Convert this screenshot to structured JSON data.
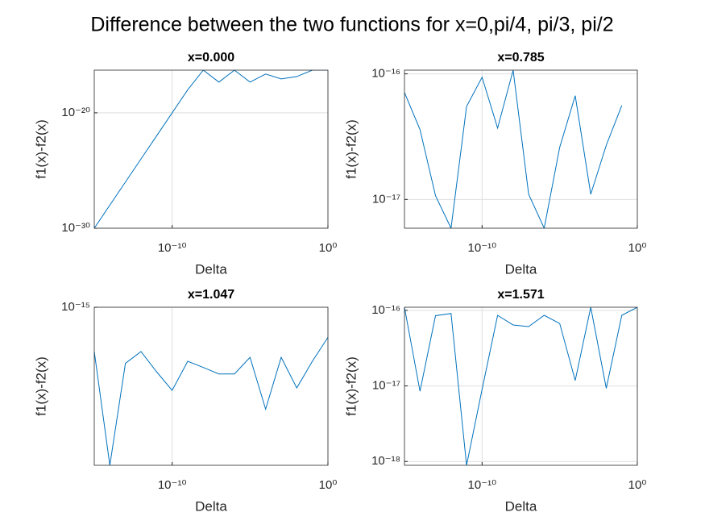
{
  "figure_title": "Difference between the two functions for x=0,pi/4, pi/3, pi/2",
  "chart_data": [
    {
      "type": "line",
      "title": "x=0.000",
      "xlabel": "Delta",
      "ylabel": "f1(x)-f2(x)",
      "xscale": "log",
      "yscale": "log",
      "grid": true,
      "x": [
        1e-15,
        1e-14,
        1e-13,
        1e-12,
        1e-11,
        1e-10,
        1e-09,
        1e-08,
        1e-07,
        1e-06,
        1e-05,
        0.0001,
        0.001,
        0.01,
        0.1,
        1
      ],
      "series": [
        {
          "color": "#0072bd",
          "values": [
            1e-30,
            1e-28,
            1e-26,
            1e-24,
            1e-22,
            1e-20,
            1e-18,
            5e-17,
            4.6e-18,
            5e-17,
            4.6e-18,
            2.3e-17,
            8.7e-18,
            1.4e-17,
            5e-17,
            5e-17
          ]
        }
      ],
      "xlim": [
        1e-15,
        1
      ],
      "xticks": [
        {
          "value": 1e-10,
          "label": "10⁻¹⁰"
        },
        {
          "value": 1,
          "label": "10⁰"
        }
      ],
      "ylim": [
        1e-30,
        5e-17
      ],
      "yticks": [
        {
          "value": 1e-30,
          "label": "10⁻³⁰"
        },
        {
          "value": 1e-20,
          "label": "10⁻²⁰"
        }
      ]
    },
    {
      "type": "line",
      "title": "x=0.785",
      "xlabel": "Delta",
      "ylabel": "f1(x)-f2(x)",
      "xscale": "log",
      "yscale": "log",
      "grid": true,
      "x": [
        1e-15,
        1e-14,
        1e-13,
        1e-12,
        1e-11,
        1e-10,
        1e-09,
        1e-08,
        1e-07,
        1e-06,
        1e-05,
        0.0001,
        0.001,
        0.01,
        0.1,
        1
      ],
      "series": [
        {
          "color": "#0072bd",
          "values": [
            7.1e-17,
            3.6e-17,
            1.07e-17,
            5.9e-18,
            5.5e-17,
            9.4e-17,
            3.7e-17,
            1.07e-16,
            1.1e-17,
            5.9e-18,
            2.6e-17,
            6.7e-17,
            1.1e-17,
            2.7e-17,
            5.6e-17,
            null
          ]
        }
      ],
      "xlim": [
        1e-15,
        1
      ],
      "xticks": [
        {
          "value": 1e-10,
          "label": "10⁻¹⁰"
        },
        {
          "value": 1,
          "label": "10⁰"
        }
      ],
      "ylim": [
        5.9e-18,
        1.07e-16
      ],
      "yticks": [
        {
          "value": 1e-17,
          "label": "10⁻¹⁷"
        },
        {
          "value": 1e-16,
          "label": "10⁻¹⁶"
        }
      ]
    },
    {
      "type": "line",
      "title": "x=1.047",
      "xlabel": "Delta",
      "ylabel": "f1(x)-f2(x)",
      "xscale": "log",
      "yscale": "log",
      "grid": true,
      "x": [
        1e-15,
        1e-14,
        1e-13,
        1e-12,
        1e-11,
        1e-10,
        1e-09,
        1e-08,
        1e-07,
        1e-06,
        1e-05,
        0.0001,
        0.001,
        0.01,
        0.1,
        1
      ],
      "series": [
        {
          "color": "#0072bd",
          "values": [
            7.2e-16,
            3.1e-16,
            6.6e-16,
            7.2e-16,
            6.2e-16,
            5.4e-16,
            6.7e-16,
            6.4e-16,
            6.1e-16,
            6.1e-16,
            6.9e-16,
            4.7e-16,
            6.9e-16,
            5.5e-16,
            6.7e-16,
            8e-16
          ]
        }
      ],
      "xlim": [
        1e-15,
        1
      ],
      "xticks": [
        {
          "value": 1e-10,
          "label": "10⁻¹⁰"
        },
        {
          "value": 1,
          "label": "10⁰"
        }
      ],
      "ylim": [
        3.1e-16,
        1e-15
      ],
      "yticks": [
        {
          "value": 1e-15,
          "label": "10⁻¹⁵"
        }
      ]
    },
    {
      "type": "line",
      "title": "x=1.571",
      "xlabel": "Delta",
      "ylabel": "f1(x)-f2(x)",
      "xscale": "log",
      "yscale": "log",
      "grid": true,
      "x": [
        1e-15,
        1e-14,
        1e-13,
        1e-12,
        1e-11,
        1e-10,
        1e-09,
        1e-08,
        1e-07,
        1e-06,
        1e-05,
        0.0001,
        0.001,
        0.01,
        0.1,
        1
      ],
      "series": [
        {
          "color": "#0072bd",
          "values": [
            1.1e-16,
            8.5e-18,
            8.5e-17,
            9.1e-17,
            8.9e-19,
            9e-18,
            8.6e-17,
            6.4e-17,
            6.1e-17,
            8.6e-17,
            6.7e-17,
            1.18e-17,
            1.1e-16,
            9.3e-18,
            8.6e-17,
            1.1e-16
          ]
        }
      ],
      "xlim": [
        1e-15,
        1
      ],
      "xticks": [
        {
          "value": 1e-10,
          "label": "10⁻¹⁰"
        },
        {
          "value": 1,
          "label": "10⁰"
        }
      ],
      "ylim": [
        8.9e-19,
        1.1e-16
      ],
      "yticks": [
        {
          "value": 1e-18,
          "label": "10⁻¹⁸"
        },
        {
          "value": 1e-17,
          "label": "10⁻¹⁷"
        },
        {
          "value": 1e-16,
          "label": "10⁻¹⁶"
        }
      ]
    }
  ]
}
